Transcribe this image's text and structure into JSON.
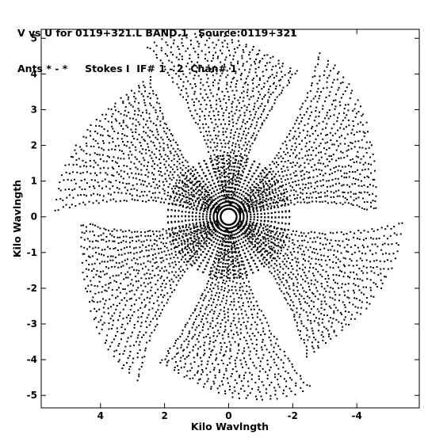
{
  "header": {
    "line1": "V vs U for 0119+321.L BAND.1   Source:0119+321",
    "line2": "Ants * - *     Stokes I  IF# 1 - 2  Chan# 1"
  },
  "chart_data": {
    "type": "scatter",
    "title": "V vs U for 0119+321.L BAND.1   Source:0119+321",
    "subtitle": "Ants * - *     Stokes I  IF# 1 - 2  Chan# 1",
    "xlabel": "Kilo Wavlngth",
    "ylabel": "Kilo Wavlngth",
    "xlim": [
      5.85,
      -5.95
    ],
    "ylim": [
      -5.35,
      5.25
    ],
    "x_reversed": true,
    "grid": false,
    "x_ticks": [
      4,
      2,
      0,
      -2,
      -4
    ],
    "x_tick_labels": [
      "4",
      "2",
      "0",
      "-2",
      "-4"
    ],
    "y_ticks": [
      5,
      4,
      3,
      2,
      1,
      0,
      -1,
      -2,
      -3,
      -4,
      -5
    ],
    "y_tick_labels": [
      "5",
      "4",
      "3",
      "2",
      "1",
      "0",
      "-1",
      "-2",
      "-3",
      "-4",
      "-5"
    ],
    "marker_color": "#000000",
    "pattern": {
      "description_free": true,
      "arms_deg": [
        90,
        210,
        330
      ],
      "arm_spread_deg": 55,
      "max_radius": 5.0,
      "center_hole_radius": 0.22,
      "tracks": 44,
      "points_per_track": 22,
      "symmetric": true
    }
  }
}
